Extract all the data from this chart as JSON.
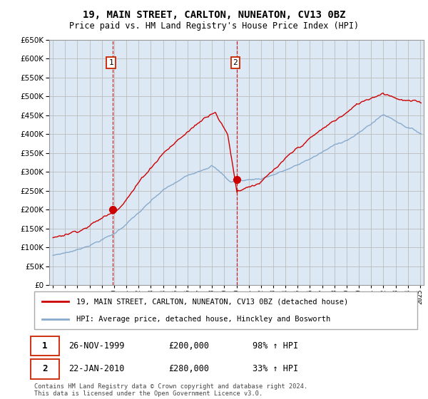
{
  "title": "19, MAIN STREET, CARLTON, NUNEATON, CV13 0BZ",
  "subtitle": "Price paid vs. HM Land Registry's House Price Index (HPI)",
  "legend_line1": "19, MAIN STREET, CARLTON, NUNEATON, CV13 0BZ (detached house)",
  "legend_line2": "HPI: Average price, detached house, Hinckley and Bosworth",
  "footer": "Contains HM Land Registry data © Crown copyright and database right 2024.\nThis data is licensed under the Open Government Licence v3.0.",
  "sale1_date": "26-NOV-1999",
  "sale1_price": 200000,
  "sale1_hpi": "98% ↑ HPI",
  "sale2_date": "22-JAN-2010",
  "sale2_price": 280000,
  "sale2_hpi": "33% ↑ HPI",
  "sale1_year": 1999.9,
  "sale2_year": 2010.05,
  "ylim": [
    0,
    650000
  ],
  "xlim_start": 1994.7,
  "xlim_end": 2025.3,
  "red_color": "#cc0000",
  "blue_color": "#88aacc",
  "shade_color": "#dce9f5",
  "bg_color": "#dce9f5",
  "plot_bg": "#ffffff",
  "grid_color": "#cccccc",
  "vline_color": "#cc0000"
}
